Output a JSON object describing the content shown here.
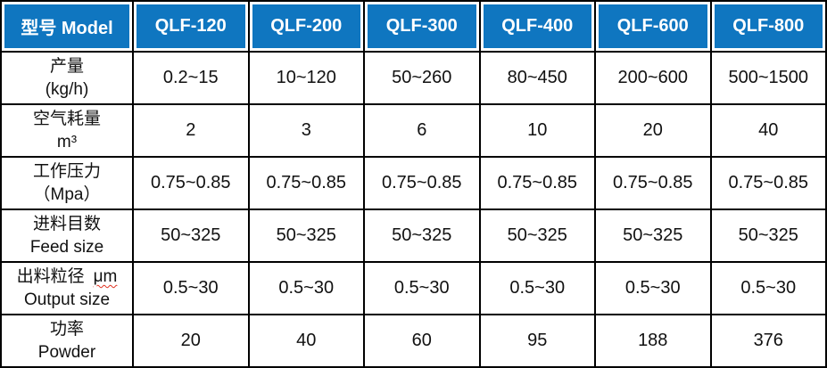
{
  "table": {
    "header": {
      "model_label": "型号 Model",
      "columns": [
        "QLF-120",
        "QLF-200",
        "QLF-300",
        "QLF-400",
        "QLF-600",
        "QLF-800"
      ]
    },
    "rows": [
      {
        "label_line1": "产量",
        "label_line2": "(kg/h)",
        "values": [
          "0.2~15",
          "10~120",
          "50~260",
          "80~450",
          "200~600",
          "500~1500"
        ]
      },
      {
        "label_line1": "空气耗量",
        "label_line2": "m³",
        "values": [
          "2",
          "3",
          "6",
          "10",
          "20",
          "40"
        ]
      },
      {
        "label_line1": "工作压力",
        "label_line2": "（Mpa）",
        "values": [
          "0.75~0.85",
          "0.75~0.85",
          "0.75~0.85",
          "0.75~0.85",
          "0.75~0.85",
          "0.75~0.85"
        ]
      },
      {
        "label_line1": "进料目数",
        "label_line2": "Feed size",
        "values": [
          "50~325",
          "50~325",
          "50~325",
          "50~325",
          "50~325",
          "50~325"
        ]
      },
      {
        "label_line1": "出料粒径",
        "label_unit": "μm",
        "label_line2": "Output size",
        "values": [
          "0.5~30",
          "0.5~30",
          "0.5~30",
          "0.5~30",
          "0.5~30",
          "0.5~30"
        ]
      },
      {
        "label_line1": "功率",
        "label_line2": "Powder",
        "values": [
          "20",
          "40",
          "60",
          "95",
          "188",
          "376"
        ]
      }
    ],
    "colors": {
      "header_bg": "#0f76c0",
      "header_text": "#ffffff",
      "border": "#000000",
      "cell_bg": "#ffffff",
      "squiggle": "#e0301e"
    }
  }
}
